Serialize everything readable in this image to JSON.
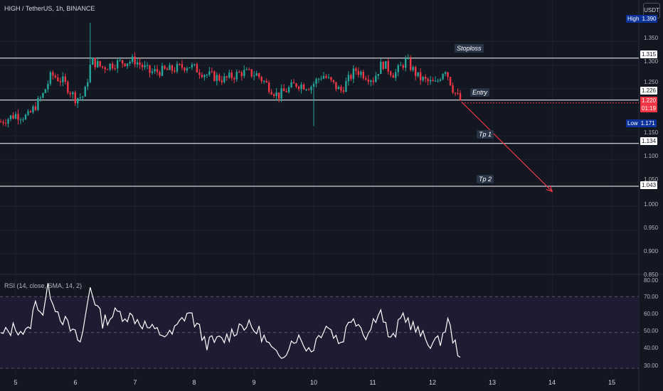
{
  "symbol_title": "HIGH / TetherUS, 1h, BINANCE",
  "currency_button": "USDT",
  "rsi_title": "RSI (14, close, SMA, 14, 2)",
  "colors": {
    "background": "#131722",
    "bull": "#26a69a",
    "bear": "#f23645",
    "level_line": "#ffffff",
    "projection": "#f23645",
    "rsi_line": "#ffffff",
    "rsi_band": "#1f1b33"
  },
  "price_axis_labels": [
    "1.390",
    "1.350",
    "1.300",
    "1.250",
    "1.150",
    "1.100",
    "1.050",
    "1.000",
    "0.950",
    "0.900",
    "0.850"
  ],
  "rsi_axis_labels": [
    "80.00",
    "70.00",
    "60.00",
    "50.00",
    "40.00",
    "30.00"
  ],
  "tags": {
    "high": {
      "key": "High",
      "value": "1.390"
    },
    "low": {
      "key": "Low",
      "value": "1.171"
    },
    "stoploss": "1.315",
    "entry": "1.226",
    "last_price": "1.220",
    "countdown": "01:19",
    "tp1": "1.134",
    "tp2": "1.043"
  },
  "annotations": {
    "stoploss": "Stoploss",
    "entry": "Entry",
    "tp1": "Tp 1",
    "tp2": "Tp 2"
  },
  "chart_data": [
    {
      "type": "line",
      "title": "HIGH / TetherUS, 1h, BINANCE",
      "x_label_days": [
        "5",
        "6",
        "7",
        "8",
        "9",
        "10",
        "11",
        "12",
        "13",
        "14",
        "15"
      ],
      "ylim": [
        0.85,
        1.39
      ],
      "horizontal_levels": [
        {
          "name": "Stoploss",
          "value": 1.315
        },
        {
          "name": "Entry",
          "value": 1.226
        },
        {
          "name": "Tp 1",
          "value": 1.134
        },
        {
          "name": "Tp 2",
          "value": 1.043
        }
      ],
      "projection": {
        "from": {
          "day": 12.48,
          "value": 1.222
        },
        "to": {
          "day": 14.0,
          "value": 1.032
        }
      },
      "high": 1.39,
      "low": 1.171,
      "last": 1.22,
      "price_path_keypoints": [
        {
          "day": 4.75,
          "value": 1.18
        },
        {
          "day": 5.0,
          "value": 1.195
        },
        {
          "day": 5.2,
          "value": 1.19
        },
        {
          "day": 5.45,
          "value": 1.235
        },
        {
          "day": 5.6,
          "value": 1.28
        },
        {
          "day": 5.8,
          "value": 1.265
        },
        {
          "day": 6.0,
          "value": 1.23
        },
        {
          "day": 6.15,
          "value": 1.235
        },
        {
          "day": 6.27,
          "value": 1.31
        },
        {
          "day": 6.45,
          "value": 1.295
        },
        {
          "day": 6.7,
          "value": 1.305
        },
        {
          "day": 7.0,
          "value": 1.31
        },
        {
          "day": 7.25,
          "value": 1.285
        },
        {
          "day": 7.6,
          "value": 1.29
        },
        {
          "day": 7.9,
          "value": 1.3
        },
        {
          "day": 8.2,
          "value": 1.28
        },
        {
          "day": 8.5,
          "value": 1.27
        },
        {
          "day": 8.8,
          "value": 1.285
        },
        {
          "day": 9.05,
          "value": 1.28
        },
        {
          "day": 9.4,
          "value": 1.235
        },
        {
          "day": 9.7,
          "value": 1.26
        },
        {
          "day": 9.95,
          "value": 1.255
        },
        {
          "day": 10.15,
          "value": 1.28
        },
        {
          "day": 10.45,
          "value": 1.245
        },
        {
          "day": 10.7,
          "value": 1.29
        },
        {
          "day": 11.0,
          "value": 1.27
        },
        {
          "day": 11.15,
          "value": 1.305
        },
        {
          "day": 11.35,
          "value": 1.28
        },
        {
          "day": 11.55,
          "value": 1.31
        },
        {
          "day": 11.75,
          "value": 1.275
        },
        {
          "day": 11.9,
          "value": 1.265
        },
        {
          "day": 12.05,
          "value": 1.26
        },
        {
          "day": 12.2,
          "value": 1.295
        },
        {
          "day": 12.35,
          "value": 1.245
        },
        {
          "day": 12.48,
          "value": 1.222
        }
      ]
    },
    {
      "type": "line",
      "title": "RSI (14, close, SMA, 14, 2)",
      "ylim": [
        30,
        80
      ],
      "bands": [
        30,
        70
      ],
      "midline": 50,
      "rsi_keypoints": [
        {
          "day": 4.75,
          "value": 48
        },
        {
          "day": 5.0,
          "value": 53
        },
        {
          "day": 5.2,
          "value": 49
        },
        {
          "day": 5.35,
          "value": 68
        },
        {
          "day": 5.45,
          "value": 60
        },
        {
          "day": 5.55,
          "value": 75
        },
        {
          "day": 5.7,
          "value": 62
        },
        {
          "day": 5.95,
          "value": 50
        },
        {
          "day": 6.1,
          "value": 44
        },
        {
          "day": 6.25,
          "value": 76
        },
        {
          "day": 6.45,
          "value": 56
        },
        {
          "day": 6.7,
          "value": 61
        },
        {
          "day": 7.0,
          "value": 58
        },
        {
          "day": 7.3,
          "value": 51
        },
        {
          "day": 7.6,
          "value": 48
        },
        {
          "day": 7.9,
          "value": 62
        },
        {
          "day": 8.2,
          "value": 44
        },
        {
          "day": 8.5,
          "value": 46
        },
        {
          "day": 8.8,
          "value": 55
        },
        {
          "day": 9.1,
          "value": 50
        },
        {
          "day": 9.4,
          "value": 35
        },
        {
          "day": 9.7,
          "value": 48
        },
        {
          "day": 9.95,
          "value": 40
        },
        {
          "day": 10.2,
          "value": 55
        },
        {
          "day": 10.45,
          "value": 44
        },
        {
          "day": 10.65,
          "value": 60
        },
        {
          "day": 10.9,
          "value": 48
        },
        {
          "day": 11.1,
          "value": 64
        },
        {
          "day": 11.3,
          "value": 44
        },
        {
          "day": 11.5,
          "value": 60
        },
        {
          "day": 11.7,
          "value": 52
        },
        {
          "day": 11.9,
          "value": 45
        },
        {
          "day": 12.1,
          "value": 44
        },
        {
          "day": 12.25,
          "value": 56
        },
        {
          "day": 12.38,
          "value": 42
        },
        {
          "day": 12.48,
          "value": 38
        }
      ]
    }
  ]
}
